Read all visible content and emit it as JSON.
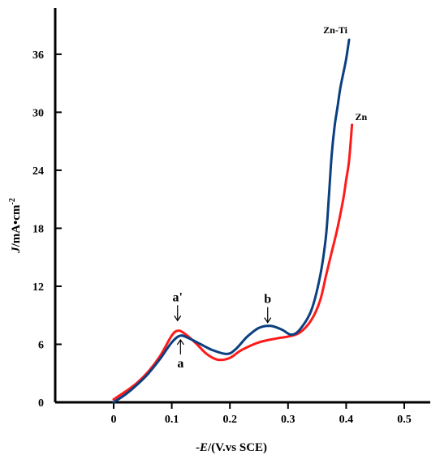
{
  "chart_data": {
    "type": "line",
    "xlabel": {
      "prefix": "-",
      "var": "E",
      "unit": "/(V.vs SCE)"
    },
    "ylabel": {
      "var": "J",
      "unit": "/mA•cm",
      "sup": "-2"
    },
    "xlim": [
      -0.1,
      0.55
    ],
    "ylim": [
      0,
      40
    ],
    "x_ticks": [
      0,
      0.1,
      0.2,
      0.3,
      0.4,
      0.5
    ],
    "x_tick_labels": [
      "0",
      "0.1",
      "0.2",
      "0.3",
      "0.4",
      "0.5"
    ],
    "y_ticks": [
      0,
      6,
      12,
      18,
      24,
      30,
      36
    ],
    "y_tick_labels": [
      "0",
      "6",
      "12",
      "18",
      "24",
      "30",
      "36"
    ],
    "series": [
      {
        "name": "Zn-Ti",
        "color": "#0b3f80",
        "points": [
          [
            0,
            0
          ],
          [
            0.02,
            0.8
          ],
          [
            0.04,
            1.8
          ],
          [
            0.06,
            3.0
          ],
          [
            0.08,
            4.5
          ],
          [
            0.1,
            6.2
          ],
          [
            0.115,
            6.9
          ],
          [
            0.13,
            6.6
          ],
          [
            0.15,
            6.0
          ],
          [
            0.17,
            5.4
          ],
          [
            0.195,
            5.0
          ],
          [
            0.21,
            5.5
          ],
          [
            0.23,
            6.8
          ],
          [
            0.25,
            7.7
          ],
          [
            0.27,
            7.9
          ],
          [
            0.29,
            7.5
          ],
          [
            0.305,
            7.0
          ],
          [
            0.32,
            7.5
          ],
          [
            0.34,
            9.5
          ],
          [
            0.355,
            13.0
          ],
          [
            0.365,
            17.0
          ],
          [
            0.37,
            21.0
          ],
          [
            0.375,
            25.5
          ],
          [
            0.38,
            28.5
          ],
          [
            0.385,
            30.5
          ],
          [
            0.39,
            32.5
          ],
          [
            0.395,
            34.0
          ],
          [
            0.4,
            35.5
          ],
          [
            0.405,
            37.5
          ]
        ]
      },
      {
        "name": "Zn",
        "color": "#ff1a1a",
        "points": [
          [
            0,
            0.3
          ],
          [
            0.02,
            1.1
          ],
          [
            0.04,
            2.0
          ],
          [
            0.06,
            3.2
          ],
          [
            0.08,
            4.8
          ],
          [
            0.1,
            6.9
          ],
          [
            0.11,
            7.4
          ],
          [
            0.12,
            7.2
          ],
          [
            0.14,
            6.2
          ],
          [
            0.16,
            5.0
          ],
          [
            0.18,
            4.4
          ],
          [
            0.2,
            4.6
          ],
          [
            0.22,
            5.4
          ],
          [
            0.25,
            6.2
          ],
          [
            0.28,
            6.6
          ],
          [
            0.3,
            6.8
          ],
          [
            0.32,
            7.2
          ],
          [
            0.34,
            8.5
          ],
          [
            0.355,
            10.5
          ],
          [
            0.365,
            13.0
          ],
          [
            0.375,
            15.5
          ],
          [
            0.385,
            18.0
          ],
          [
            0.395,
            21.0
          ],
          [
            0.4,
            23.0
          ],
          [
            0.405,
            25.0
          ],
          [
            0.41,
            28.7
          ]
        ]
      }
    ],
    "annotations": [
      {
        "text": "a'",
        "x": 0.11,
        "y": 8.2,
        "position": "above",
        "arrow": "down"
      },
      {
        "text": "a",
        "x": 0.115,
        "y": 6.8,
        "position": "below",
        "arrow": "up"
      },
      {
        "text": "b",
        "x": 0.265,
        "y": 8.0,
        "position": "above",
        "arrow": "down"
      }
    ]
  }
}
